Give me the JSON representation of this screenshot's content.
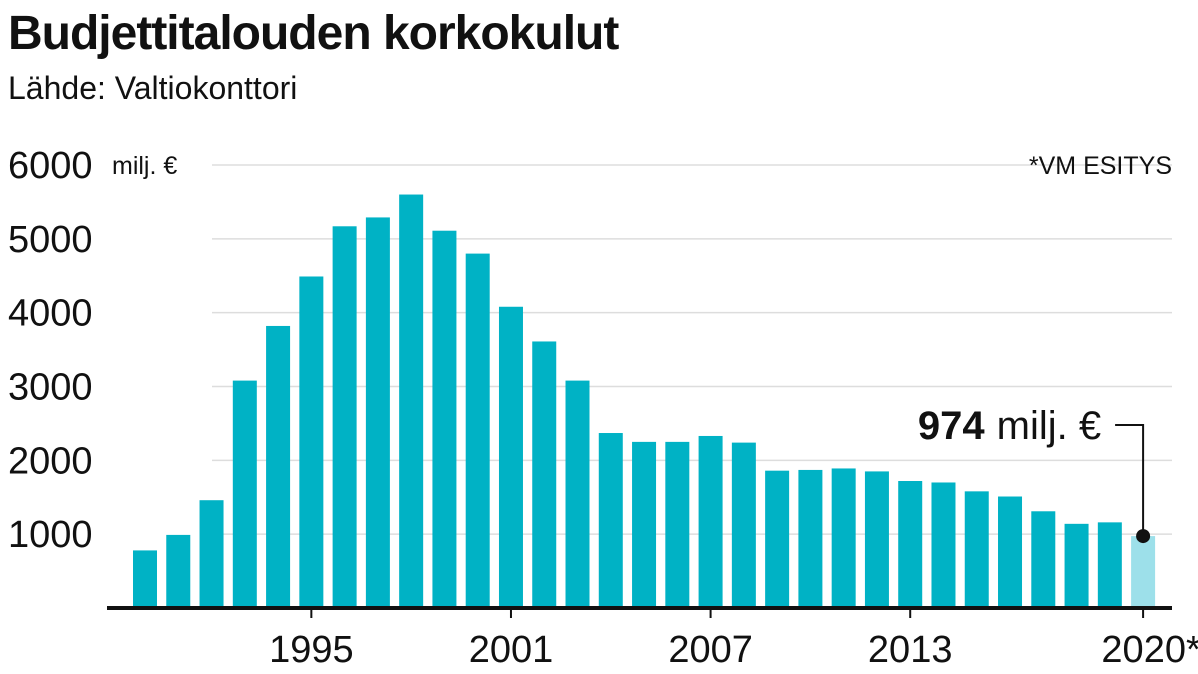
{
  "chart_data": {
    "type": "bar",
    "title": "Budjettitalouden korkokulut",
    "subtitle": "Lähde: Valtiokonttori",
    "unit_label": "milj. €",
    "note": "*VM ESITYS",
    "x": [
      1990,
      1991,
      1992,
      1993,
      1994,
      1995,
      1996,
      1997,
      1998,
      1999,
      2000,
      2001,
      2002,
      2003,
      2004,
      2005,
      2006,
      2007,
      2008,
      2009,
      2010,
      2011,
      2012,
      2013,
      2014,
      2015,
      2016,
      2017,
      2018,
      2019,
      2020
    ],
    "values": [
      780,
      990,
      1460,
      3080,
      3820,
      4490,
      5170,
      5290,
      5600,
      5110,
      4800,
      4080,
      3610,
      3080,
      2370,
      2250,
      2250,
      2330,
      2240,
      1860,
      1870,
      1890,
      1850,
      1720,
      1700,
      1580,
      1510,
      1310,
      1140,
      1160,
      974
    ],
    "highlight": {
      "x": 2020,
      "label_value": "974",
      "label_unit": "milj. €"
    },
    "y_ticks": [
      1000,
      2000,
      3000,
      4000,
      5000,
      6000
    ],
    "x_ticks": [
      {
        "x": 1995,
        "label": "1995"
      },
      {
        "x": 2001,
        "label": "2001"
      },
      {
        "x": 2007,
        "label": "2007"
      },
      {
        "x": 2013,
        "label": "2013"
      },
      {
        "x": 2020,
        "label": "2020*"
      }
    ],
    "ylim": [
      0,
      6000
    ],
    "grid": true,
    "colors": {
      "bar": "#00b2c5",
      "highlight_bar": "#9de0ea",
      "grid": "#dddddd",
      "axis": "#111111"
    }
  }
}
